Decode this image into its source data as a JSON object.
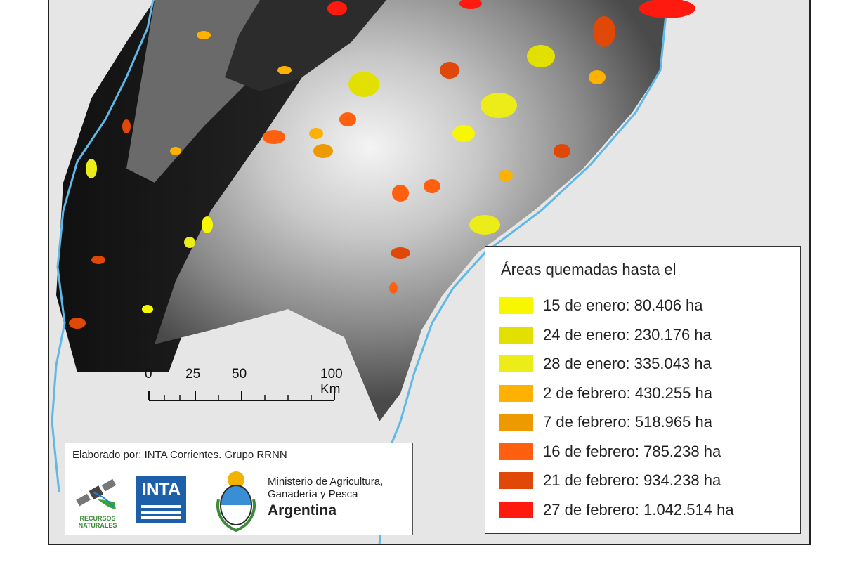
{
  "legend": {
    "title": "Áreas quemadas hasta el",
    "items": [
      {
        "label": "15 de enero: 80.406 ha",
        "color": "#f7f700"
      },
      {
        "label": "24 de enero: 230.176 ha",
        "color": "#e2e000"
      },
      {
        "label": "28 de enero: 335.043 ha",
        "color": "#ecec18"
      },
      {
        "label": "2 de febrero: 430.255 ha",
        "color": "#fdb100"
      },
      {
        "label": "7 de febrero: 518.965 ha",
        "color": "#ec9a00"
      },
      {
        "label": "16 de febrero: 785.238 ha",
        "color": "#ff6010"
      },
      {
        "label": "21 de febrero: 934.238 ha",
        "color": "#e04808"
      },
      {
        "label": "27 de febrero: 1.042.514 ha",
        "color": "#ff1a10"
      }
    ]
  },
  "scalebar": {
    "labels": [
      "0",
      "25",
      "50",
      "100 Km"
    ]
  },
  "credits": {
    "text": "Elaborado por: INTA Corrientes. Grupo RRNN",
    "recursos_label": "RECURSOS NATURALES",
    "inta_label": "INTA",
    "ministry_line1": "Ministerio de Agricultura,",
    "ministry_line2": "Ganadería y Pesca",
    "ministry_line3": "Argentina"
  }
}
